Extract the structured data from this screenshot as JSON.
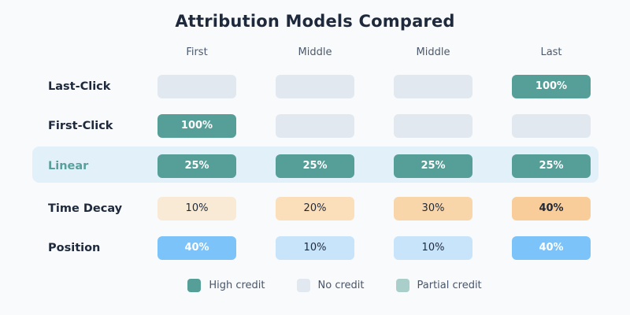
{
  "title": "Attribution Models Compared",
  "columns": [
    {
      "label": "First"
    },
    {
      "label": "Middle"
    },
    {
      "label": "Middle"
    },
    {
      "label": "Last"
    }
  ],
  "rows": [
    {
      "label": "Last-Click",
      "cells": [
        {
          "text": "",
          "variant": "none"
        },
        {
          "text": "",
          "variant": "none"
        },
        {
          "text": "",
          "variant": "none"
        },
        {
          "text": "100%",
          "variant": "high"
        }
      ]
    },
    {
      "label": "First-Click",
      "cells": [
        {
          "text": "100%",
          "variant": "high"
        },
        {
          "text": "",
          "variant": "none"
        },
        {
          "text": "",
          "variant": "none"
        },
        {
          "text": "",
          "variant": "none"
        }
      ]
    },
    {
      "label": "Linear",
      "rowVariant": "hl",
      "cells": [
        {
          "text": "25%",
          "variant": "high"
        },
        {
          "text": "25%",
          "variant": "high"
        },
        {
          "text": "25%",
          "variant": "high"
        },
        {
          "text": "25%",
          "variant": "high"
        }
      ]
    },
    {
      "label": "Time Decay",
      "cells": [
        {
          "text": "10%",
          "variant": "orange1"
        },
        {
          "text": "20%",
          "variant": "orange2"
        },
        {
          "text": "30%",
          "variant": "orange3"
        },
        {
          "text": "40%",
          "variant": "orange4"
        }
      ]
    },
    {
      "label": "Position",
      "cells": [
        {
          "text": "40%",
          "variant": "blueStrong"
        },
        {
          "text": "10%",
          "variant": "blueLight"
        },
        {
          "text": "10%",
          "variant": "blueLight"
        },
        {
          "text": "40%",
          "variant": "blueStrong"
        }
      ]
    }
  ],
  "legend": [
    {
      "label": "High credit",
      "color": "#569e98"
    },
    {
      "label": "No credit",
      "color": "#e2e8f0"
    },
    {
      "label": "Partial credit",
      "color": "#aacfca"
    }
  ],
  "colors": {
    "background": "#f8fafc",
    "title_text": "#1e293b",
    "header_text": "#4b5a6e",
    "high_credit": "#569e98",
    "no_credit": "#e2e8f0",
    "partial_credit": "#aacfca",
    "highlight_band": "#e2f0fa",
    "time_decay_scale": [
      "#f8ead5",
      "#fadfba",
      "#f9d6aa",
      "#f8cd9a"
    ],
    "position_strong": "#7cc3f9",
    "position_light": "#c8e4fb"
  },
  "chart_data": {
    "type": "heatmap",
    "title": "Attribution Models Compared",
    "columns": [
      "First",
      "Middle",
      "Middle",
      "Last"
    ],
    "rows": [
      "Last-Click",
      "First-Click",
      "Linear",
      "Time Decay",
      "Position"
    ],
    "values_percent": [
      [
        0,
        0,
        0,
        100
      ],
      [
        100,
        0,
        0,
        0
      ],
      [
        25,
        25,
        25,
        25
      ],
      [
        10,
        20,
        30,
        40
      ],
      [
        40,
        10,
        10,
        40
      ]
    ],
    "highlighted_row": "Linear",
    "legend_entries": [
      "High credit",
      "No credit",
      "Partial credit"
    ],
    "legend_position": "bottom"
  }
}
